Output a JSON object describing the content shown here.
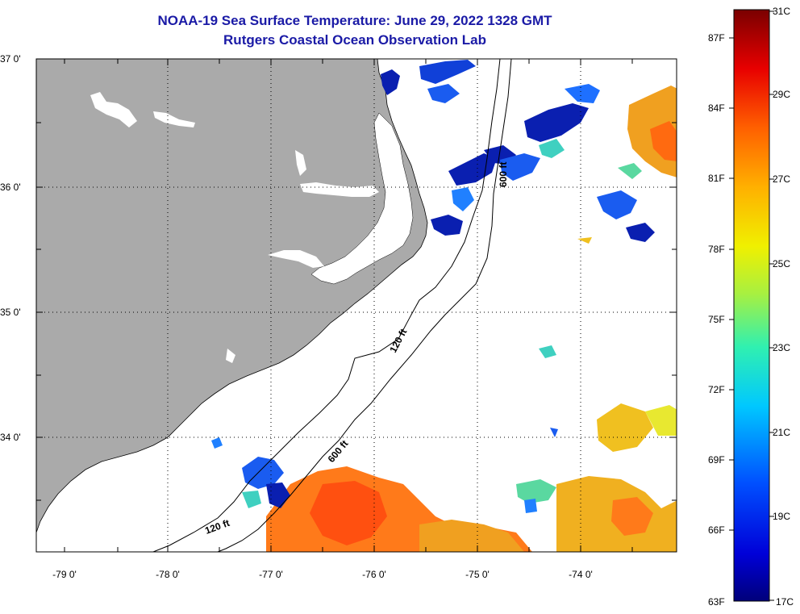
{
  "title": "NOAA-19 Sea Surface Temperature:  June 29, 2022 1328 GMT",
  "subtitle": "Rutgers Coastal Ocean Observation Lab",
  "lat_labels": [
    "37 0'",
    "36 0'",
    "35 0'",
    "34 0'"
  ],
  "lon_labels": [
    "-79 0'",
    "-78 0'",
    "-77 0'",
    "-76 0'",
    "-75 0'",
    "-74 0'"
  ],
  "isobaths": [
    {
      "name": "120-ft-label-north",
      "text": "120 ft"
    },
    {
      "name": "120-ft-label-south",
      "text": "120 ft"
    },
    {
      "name": "600-ft-label-north",
      "text": "600 ft"
    },
    {
      "name": "600-ft-label-south",
      "text": "600 ft"
    }
  ],
  "colorbar": {
    "fahrenheit": [
      "87F",
      "84F",
      "81F",
      "78F",
      "75F",
      "72F",
      "69F",
      "66F",
      "63F"
    ],
    "celsius": [
      "31C",
      "29C",
      "27C",
      "25C",
      "23C",
      "21C",
      "19C",
      "17C"
    ]
  },
  "colors": {
    "title": "#1a1aa6",
    "land": "#aaaaaa",
    "ocean": "#ffffff"
  }
}
